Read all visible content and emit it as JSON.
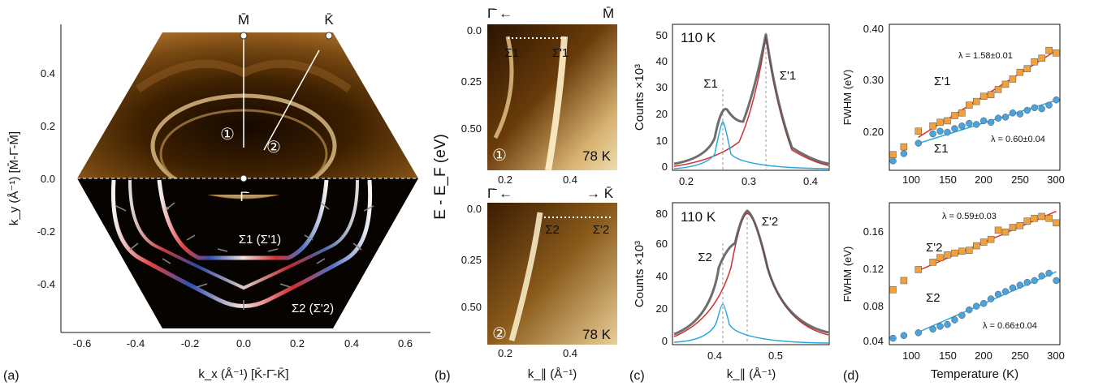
{
  "panel_a": {
    "panel_label": "(a)",
    "xlabel": "k_x (Å⁻¹) [K̄-Γ̄-K̄]",
    "ylabel": "k_y (Å⁻¹) [M̄-Γ̄-M̄]",
    "xticks": [
      "-0.6",
      "-0.4",
      "-0.2",
      "0.0",
      "0.2",
      "0.4",
      "0.6"
    ],
    "yticks": [
      "0.4",
      "0.2",
      "0.0",
      "-0.2",
      "-0.4"
    ],
    "top_labels": [
      "M̄",
      "K̄"
    ],
    "gamma_label": "Γ̄",
    "cut_labels": [
      "①",
      "②"
    ],
    "band_labels": [
      "Σ1 (Σ'1)",
      "Σ2 (Σ'2)"
    ]
  },
  "panel_b": {
    "panel_label": "(b)",
    "ylabel": "E - E_F (eV)",
    "xlabel": "k_∥ (Å⁻¹)",
    "top": {
      "left": "Γ̄ ←",
      "right": "M̄",
      "cut": "①",
      "temp": "78 K",
      "lines": [
        "Σ1",
        "Σ'1"
      ],
      "yticks": [
        "0.0",
        "0.25",
        "0.50"
      ],
      "xticks": [
        "0.2",
        "0.4"
      ]
    },
    "bottom": {
      "left": "Γ̄ ←",
      "right": "→ K̄",
      "cut": "②",
      "temp": "78 K",
      "lines": [
        "Σ2",
        "Σ'2"
      ],
      "yticks": [
        "0.0",
        "0.25",
        "0.50"
      ],
      "xticks": [
        "0.2",
        "0.4"
      ]
    }
  },
  "panel_c": {
    "panel_label": "(c)",
    "xlabel": "k_∥ (Å⁻¹)",
    "ylabel": "Counts ×10³",
    "top": {
      "temp": "110 K",
      "peaks": [
        "Σ1",
        "Σ'1"
      ],
      "yticks": [
        "0",
        "10",
        "20",
        "30",
        "40",
        "50"
      ],
      "xticks": [
        "0.2",
        "0.3",
        "0.4"
      ]
    },
    "bottom": {
      "temp": "110 K",
      "peaks": [
        "Σ2",
        "Σ'2"
      ],
      "yticks": [
        "0",
        "20",
        "40",
        "60",
        "80"
      ],
      "xticks": [
        "0.4",
        "0.5"
      ]
    }
  },
  "panel_d": {
    "panel_label": "(d)",
    "xlabel": "Temperature (K)",
    "ylabel": "FWHM (eV)",
    "xticks": [
      "100",
      "150",
      "200",
      "250",
      "300"
    ],
    "top": {
      "yticks": [
        "0.40",
        "0.30",
        "0.20"
      ],
      "series": [
        "Σ'1",
        "Σ1"
      ],
      "lambda": [
        "λ = 1.58±0.01",
        "λ = 0.60±0.04"
      ]
    },
    "bottom": {
      "yticks": [
        "0.16",
        "0.12",
        "0.08",
        "0.04"
      ],
      "series": [
        "Σ'2",
        "Σ2"
      ],
      "lambda": [
        "λ = 0.59±0.03",
        "λ = 0.66±0.04"
      ]
    }
  },
  "chart_data": [
    {
      "type": "scatter",
      "title": "",
      "xlabel": "Temperature (K)",
      "ylabel": "FWHM (eV)",
      "xlim": [
        70,
        305
      ],
      "ylim": [
        0.13,
        0.41
      ],
      "series": [
        {
          "name": "Σ'1",
          "color": "#f2a03a",
          "x": [
            75,
            90,
            110,
            130,
            140,
            150,
            160,
            170,
            180,
            190,
            200,
            210,
            220,
            230,
            240,
            250,
            260,
            270,
            280,
            290,
            300
          ],
          "y": [
            0.16,
            0.175,
            0.205,
            0.215,
            0.222,
            0.225,
            0.235,
            0.24,
            0.255,
            0.262,
            0.272,
            0.275,
            0.285,
            0.295,
            0.305,
            0.318,
            0.325,
            0.338,
            0.345,
            0.36,
            0.355
          ],
          "fit_lambda": "λ = 1.58±0.01"
        },
        {
          "name": "Σ1",
          "color": "#4aa3dd",
          "x": [
            75,
            90,
            110,
            130,
            140,
            150,
            160,
            170,
            180,
            190,
            200,
            210,
            220,
            230,
            240,
            250,
            260,
            270,
            280,
            290,
            300
          ],
          "y": [
            0.148,
            0.162,
            0.182,
            0.2,
            0.205,
            0.203,
            0.21,
            0.215,
            0.22,
            0.218,
            0.225,
            0.222,
            0.23,
            0.232,
            0.24,
            0.238,
            0.245,
            0.25,
            0.248,
            0.255,
            0.265
          ],
          "fit_lambda": "λ = 0.60±0.04"
        }
      ]
    },
    {
      "type": "scatter",
      "title": "",
      "xlabel": "Temperature (K)",
      "ylabel": "FWHM (eV)",
      "xlim": [
        70,
        305
      ],
      "ylim": [
        0.03,
        0.185
      ],
      "series": [
        {
          "name": "Σ'2",
          "color": "#f2a03a",
          "x": [
            75,
            90,
            110,
            130,
            140,
            150,
            160,
            170,
            180,
            190,
            200,
            210,
            220,
            230,
            240,
            250,
            260,
            270,
            280,
            290,
            300
          ],
          "y": [
            0.09,
            0.1,
            0.112,
            0.12,
            0.125,
            0.128,
            0.13,
            0.132,
            0.133,
            0.138,
            0.142,
            0.145,
            0.155,
            0.153,
            0.158,
            0.16,
            0.165,
            0.168,
            0.17,
            0.168,
            0.163
          ],
          "fit_lambda": "λ = 0.59±0.03"
        },
        {
          "name": "Σ2",
          "color": "#4aa3dd",
          "x": [
            75,
            90,
            110,
            130,
            140,
            150,
            160,
            170,
            180,
            190,
            200,
            210,
            220,
            230,
            240,
            250,
            260,
            270,
            280,
            290,
            300
          ],
          "y": [
            0.037,
            0.04,
            0.043,
            0.047,
            0.05,
            0.052,
            0.057,
            0.062,
            0.068,
            0.072,
            0.075,
            0.08,
            0.085,
            0.088,
            0.092,
            0.095,
            0.098,
            0.1,
            0.105,
            0.108,
            0.1
          ],
          "fit_lambda": "λ = 0.66±0.04"
        }
      ]
    }
  ]
}
